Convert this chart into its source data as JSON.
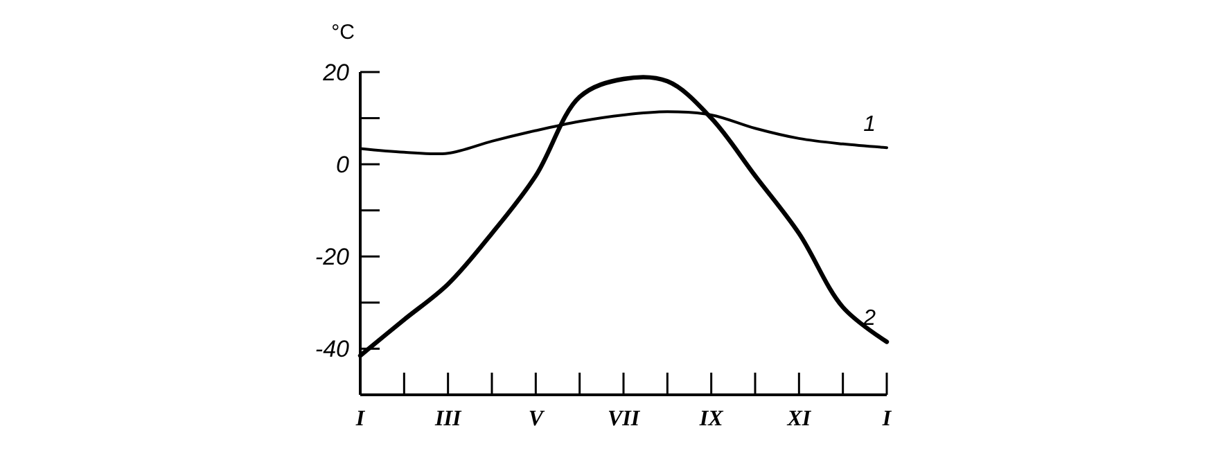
{
  "chart_data": {
    "type": "line",
    "ylabel": "°C",
    "categories": [
      "I",
      null,
      "III",
      null,
      "V",
      null,
      "VII",
      null,
      "IX",
      null,
      "XI",
      null,
      "I"
    ],
    "ylim": [
      -50,
      20
    ],
    "yticks": [
      {
        "value": -50,
        "label": null
      },
      {
        "value": -40,
        "label": "-40"
      },
      {
        "value": -30,
        "label": null
      },
      {
        "value": -20,
        "label": "-20"
      },
      {
        "value": -10,
        "label": null
      },
      0,
      {
        "value": 10,
        "label": null
      },
      20
    ],
    "series": [
      {
        "name": "1",
        "color": "#000000",
        "values": [
          3.4,
          2.6,
          2.4,
          5,
          7.3,
          9.3,
          10.7,
          11.4,
          10.7,
          7.8,
          5.6,
          4.4,
          3.6
        ]
      },
      {
        "name": "2",
        "color": "#000000",
        "values": [
          -41.5,
          -33.7,
          -26,
          -15,
          -2.5,
          14.6,
          18.5,
          18,
          10,
          -2.5,
          -15,
          -31,
          -38.5
        ]
      }
    ],
    "grid": false,
    "marker": "none",
    "line_style": "solid"
  }
}
